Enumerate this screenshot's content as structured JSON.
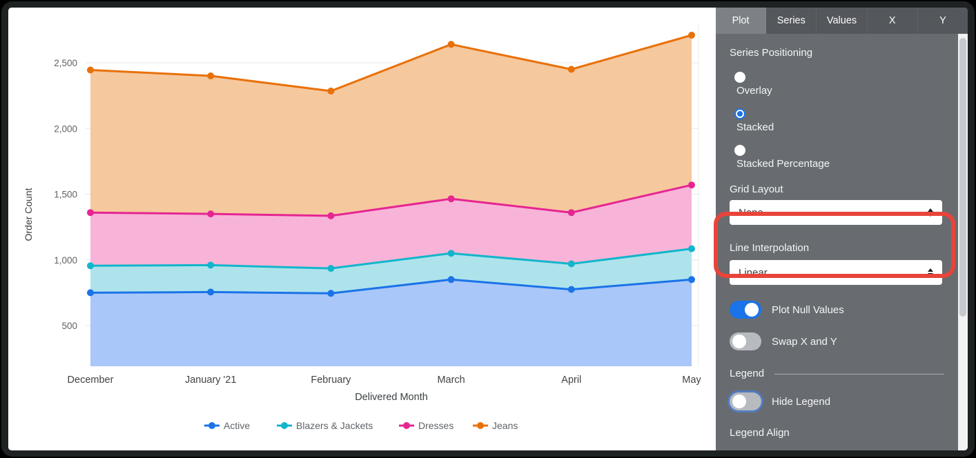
{
  "chart_data": {
    "type": "area",
    "stacked": true,
    "xlabel": "Delivered Month",
    "ylabel": "Order Count",
    "categories": [
      "December",
      "January '21",
      "February",
      "March",
      "April",
      "May"
    ],
    "series": [
      {
        "name": "Active",
        "color": "#1a73e8",
        "fill": "#a9c7f8",
        "values": [
          750,
          755,
          745,
          850,
          775,
          850
        ]
      },
      {
        "name": "Blazers & Jackets",
        "color": "#12b5cb",
        "fill": "#aee3ec",
        "values": [
          205,
          205,
          190,
          200,
          195,
          235
        ]
      },
      {
        "name": "Dresses",
        "color": "#e52592",
        "fill": "#f8b4d8",
        "values": [
          405,
          390,
          400,
          415,
          390,
          485
        ]
      },
      {
        "name": "Jeans",
        "color": "#e8710a",
        "fill": "#f6c89e",
        "values": [
          1085,
          1050,
          950,
          1175,
          1090,
          1140
        ]
      }
    ],
    "cumulative_totals": {
      "December": 2445,
      "January '21": 2400,
      "February": 2285,
      "March": 2640,
      "April": 2450,
      "May": 2710
    },
    "yticks": [
      500,
      1000,
      1500,
      2000,
      2500
    ],
    "ylim": [
      190,
      2880
    ],
    "grid": true,
    "legend_position": "bottom"
  },
  "panel": {
    "tabs": [
      "Plot",
      "Series",
      "Values",
      "X",
      "Y"
    ],
    "active_tab": "Plot",
    "series_positioning_label": "Series Positioning",
    "series_positioning_options": [
      "Overlay",
      "Stacked",
      "Stacked Percentage"
    ],
    "series_positioning_selected": "Stacked",
    "grid_layout_label": "Grid Layout",
    "grid_layout_value": "None",
    "line_interpolation_label": "Line Interpolation",
    "line_interpolation_value": "Linear",
    "plot_null_values_label": "Plot Null Values",
    "plot_null_values_on": true,
    "swap_x_y_label": "Swap X and Y",
    "swap_x_y_on": false,
    "legend_section_label": "Legend",
    "hide_legend_label": "Hide Legend",
    "hide_legend_on": false,
    "legend_align_label": "Legend Align"
  },
  "annotation": {
    "shape": "rounded-rectangle",
    "color": "#e8443a",
    "highlights": "Grid Layout dropdown"
  },
  "colors": {
    "panel_bg": "#686c70",
    "tabbar_bg": "#54575b",
    "active_tab_bg": "#7d8185",
    "toggle_on": "#1a73e8",
    "toggle_off": "#b7bbbf",
    "grid_line": "#e7e7e7",
    "tick_text": "#616161"
  }
}
